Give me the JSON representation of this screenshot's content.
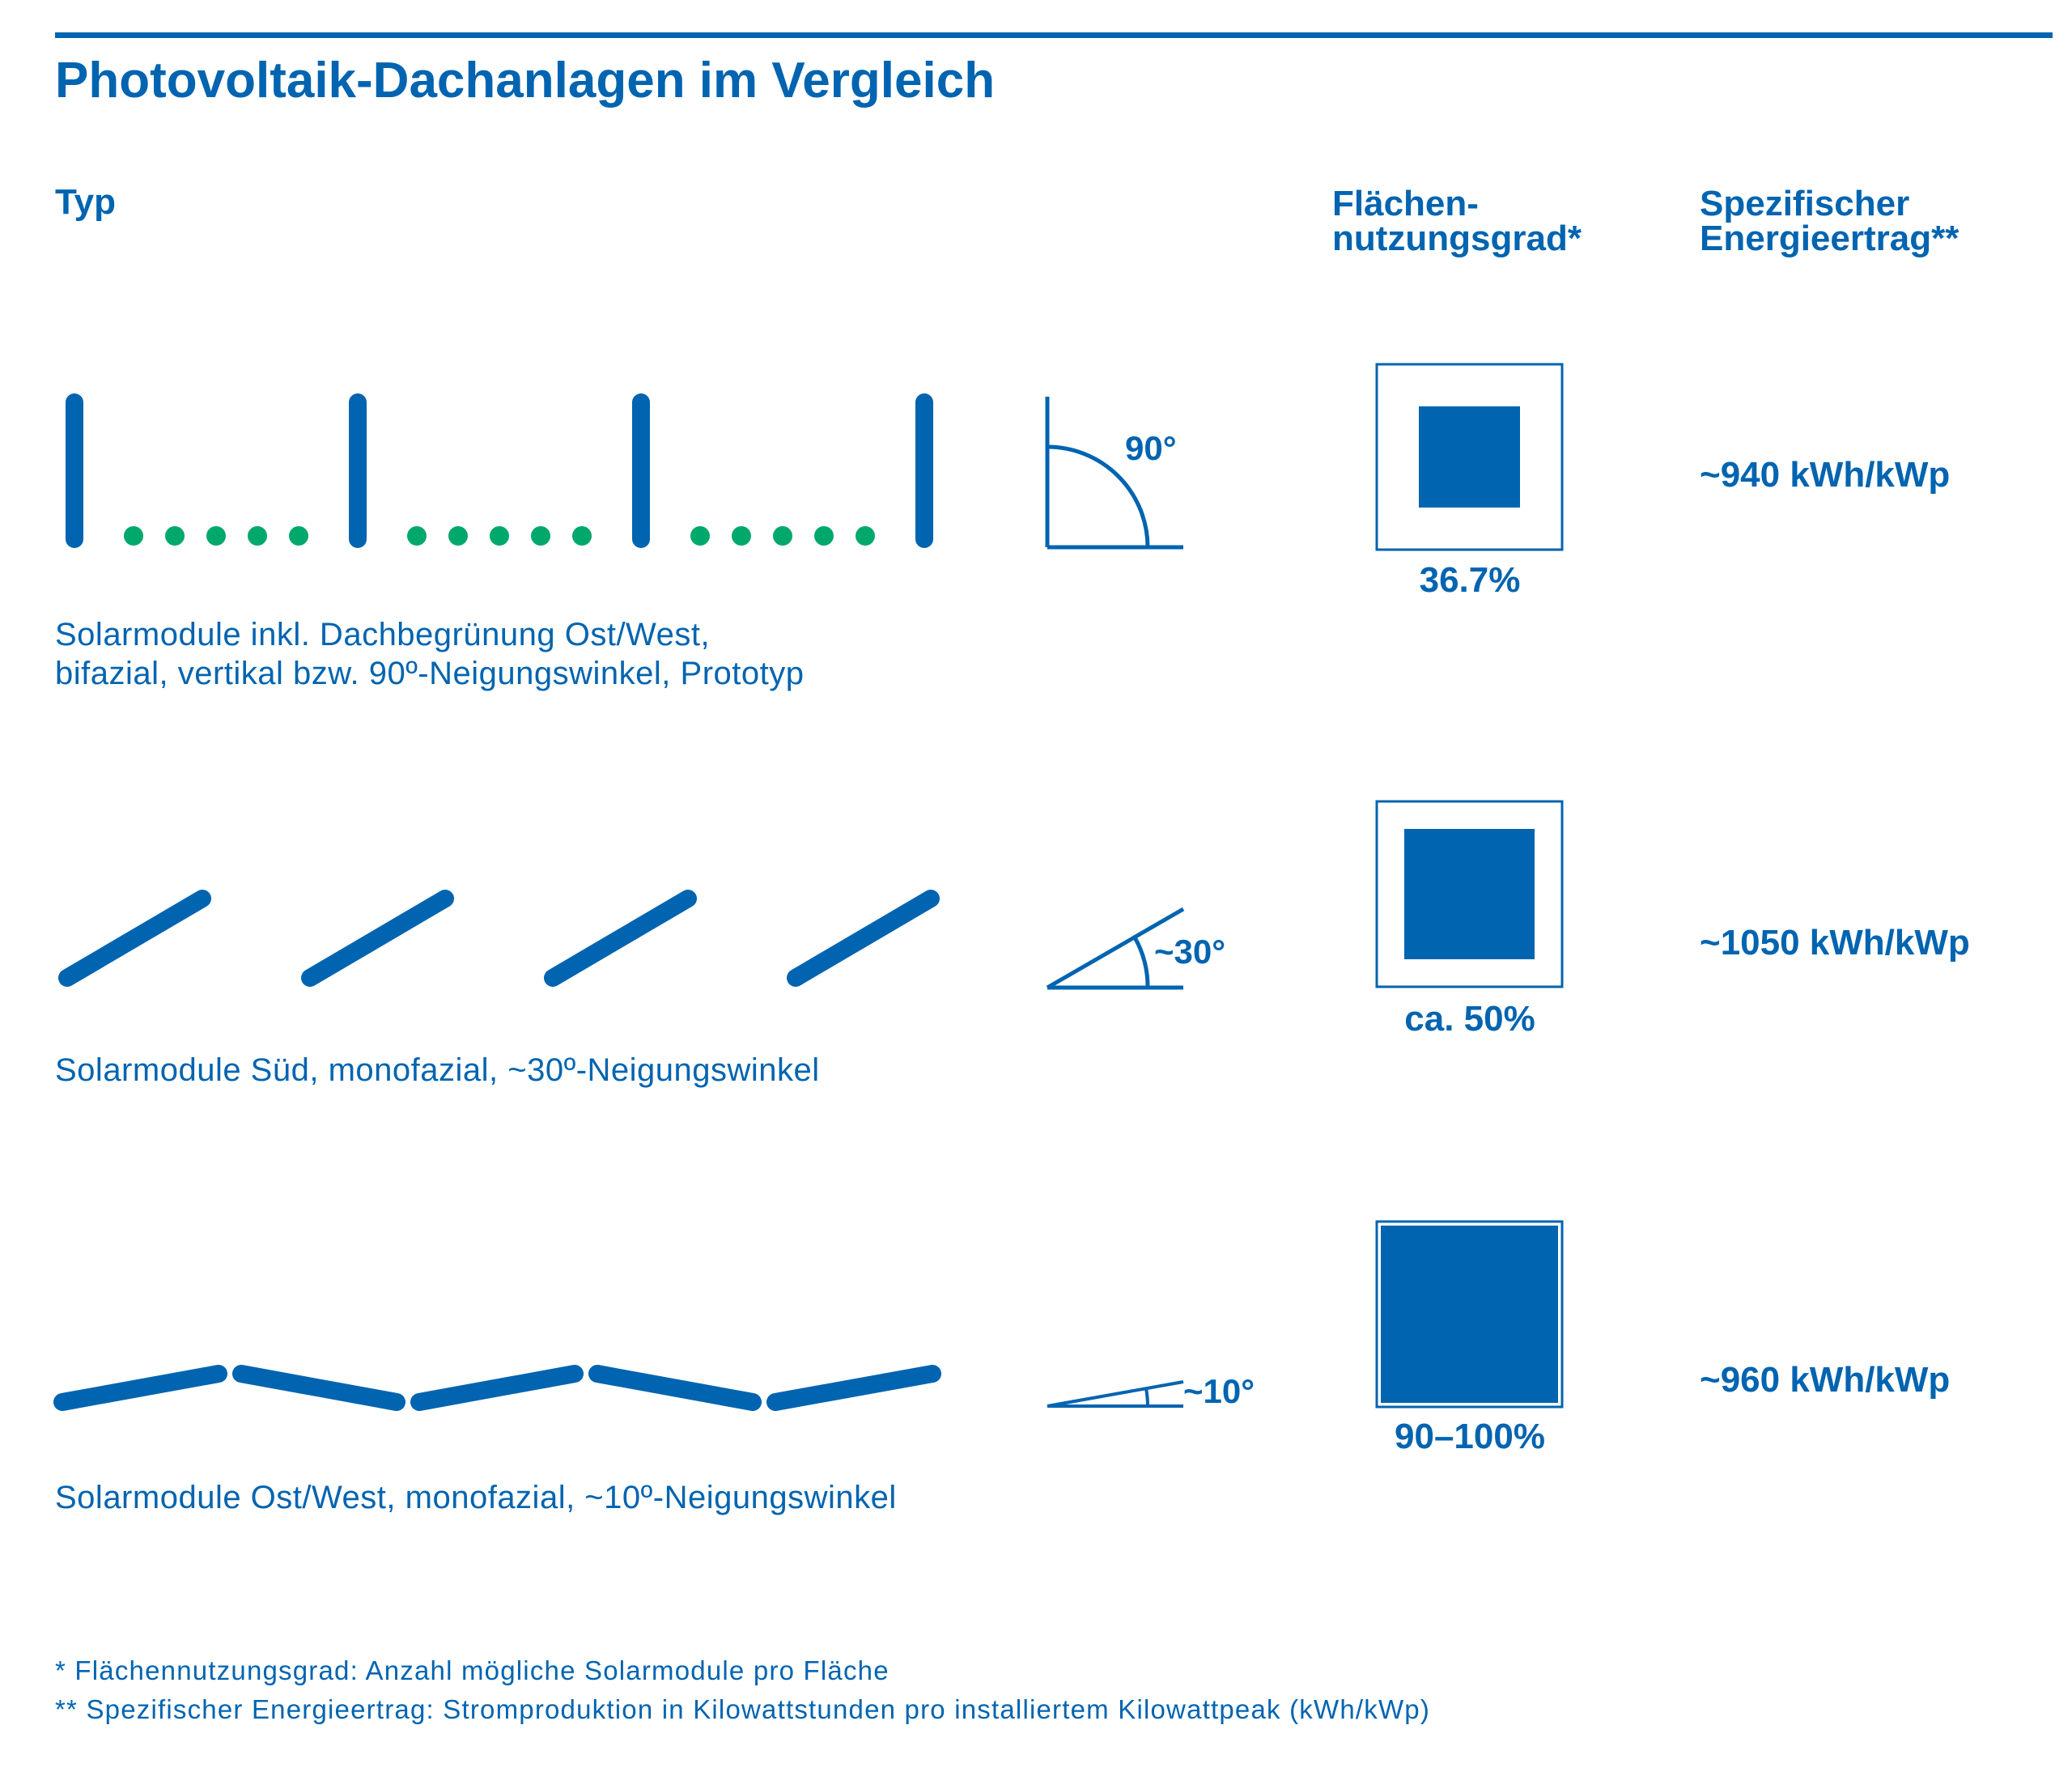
{
  "title": "Photovoltaik-Dachanlagen im Vergleich",
  "headers": {
    "type": "Typ",
    "area_line1": "Flächen-",
    "area_line2": "nutzungsgrad*",
    "yield_line1": "Spezifischer",
    "yield_line2": "Energieertrag**"
  },
  "rows": [
    {
      "desc_line1": "Solarmodule inkl. Dachbegrünung Ost/West,",
      "desc_line2": "bifazial, vertikal bzw. 90º-Neigungswinkel, Prototyp",
      "angle_label": "90°",
      "area_percent": "36.7%",
      "area_fraction": 0.367,
      "yield": "~940 kWh/kWp"
    },
    {
      "desc_line1": "Solarmodule Süd, monofazial, ~30º-Neigungswinkel",
      "angle_label": "~30°",
      "area_percent": "ca. 50%",
      "area_fraction": 0.5,
      "yield": "~1050 kWh/kWp"
    },
    {
      "desc_line1": "Solarmodule Ost/West, monofazial, ~10º-Neigungswinkel",
      "angle_label": "~10°",
      "area_percent": "90–100%",
      "area_fraction": 0.95,
      "yield": "~960 kWh/kWp"
    }
  ],
  "footnotes": [
    "* Flächennutzungsgrad: Anzahl mögliche Solarmodule pro Fläche",
    "** Spezifischer Energieertrag: Stromproduktion in Kilowattstunden pro installiertem Kilowattpeak (kWh/kWp)"
  ],
  "colors": {
    "module_blue": "#0064b0",
    "greenery_green": "#00a86b"
  },
  "icons": [
    "vertical-module-icon",
    "greenery-dot-icon",
    "tilted-module-icon",
    "angle-90-icon",
    "angle-30-icon",
    "angle-10-icon",
    "area-usage-square-icon"
  ]
}
